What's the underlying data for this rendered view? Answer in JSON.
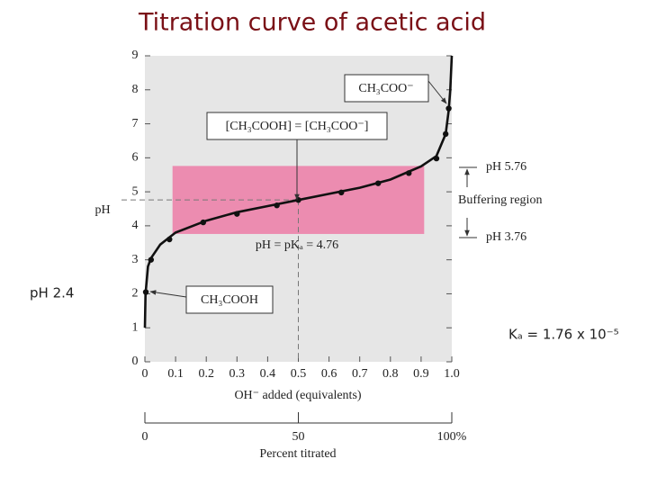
{
  "chart_data": {
    "type": "line",
    "title": "Titration curve of acetic acid",
    "ylabel": "pH",
    "xlabel": "OH⁻ added (equivalents)",
    "x2label": "Percent titrated",
    "xlim": [
      0,
      1
    ],
    "xticks": [
      0,
      0.1,
      0.2,
      0.3,
      0.4,
      0.5,
      0.6,
      0.7,
      0.8,
      0.9,
      {
        "value": 1,
        "label": "1.0"
      }
    ],
    "ylim": [
      0,
      9
    ],
    "yticks": [
      0,
      1,
      2,
      3,
      4,
      5,
      6,
      7,
      8,
      9
    ],
    "x2lim": [
      0,
      100
    ],
    "x2ticks": [
      0,
      50,
      {
        "value": 100,
        "label": "100%"
      }
    ],
    "series": [
      {
        "style": "line",
        "color": "#111111",
        "x": [
          0,
          0.002,
          0.01,
          0.02,
          0.05,
          0.1,
          0.2,
          0.3,
          0.4,
          0.5,
          0.6,
          0.7,
          0.8,
          0.9,
          0.95,
          0.98,
          0.99,
          0.995,
          1.0
        ],
        "values": [
          1.0,
          2.0,
          2.8,
          3.05,
          3.45,
          3.8,
          4.15,
          4.4,
          4.58,
          4.76,
          4.94,
          5.12,
          5.36,
          5.75,
          6.05,
          6.7,
          7.4,
          8.0,
          9.0
        ]
      },
      {
        "style": "points",
        "color": "#111111",
        "x": [
          0.003,
          0.02,
          0.08,
          0.19,
          0.3,
          0.43,
          0.5,
          0.64,
          0.76,
          0.86,
          0.95,
          0.98,
          0.99
        ],
        "values": [
          2.05,
          3.0,
          3.6,
          4.1,
          4.35,
          4.6,
          4.76,
          4.98,
          5.25,
          5.55,
          5.98,
          6.7,
          7.45
        ]
      }
    ],
    "band": {
      "color": "#ec8cb0",
      "xlim": [
        0.09,
        0.91
      ],
      "ylim": [
        3.76,
        5.76
      ]
    },
    "reference": {
      "x": 0.5,
      "y": 4.76
    },
    "background": "#e6e6e6",
    "annotations": [
      "CH₃COO⁻",
      "[CH₃COOH] = [CH₃COO⁻]",
      "pH = pKₐ = 4.76",
      "CH₃COOH",
      "pH 5.76",
      "Buffering region",
      "pH 3.76",
      "pH 2.4",
      "Kₐ = 1.76 x 10⁻⁵"
    ]
  }
}
